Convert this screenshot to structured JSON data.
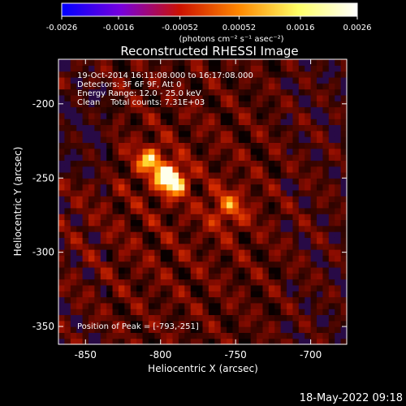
{
  "chart_data": {
    "type": "heatmap",
    "title": "Reconstructed RHESSI Image",
    "xlabel": "Heliocentric X (arcsec)",
    "ylabel": "Heliocentric Y (arcsec)",
    "xlim": [
      -868,
      -676
    ],
    "ylim": [
      -362,
      -170
    ],
    "x_ticks": [
      -850,
      -800,
      -750,
      -700
    ],
    "y_ticks": [
      -350,
      -300,
      -250,
      -200
    ],
    "x_tick_labels": [
      "-850",
      "-800",
      "-750",
      "-700"
    ],
    "y_tick_labels": [
      "-350",
      "-300",
      "-250",
      "-200"
    ],
    "colorbar": {
      "range": [
        -0.0026,
        0.0026
      ],
      "ticks": [
        -0.0026,
        -0.0016,
        -0.00052,
        0.00052,
        0.0016,
        0.0026
      ],
      "tick_labels": [
        "-0.0026",
        "-0.0016",
        "-0.00052",
        "0.00052",
        "0.0016",
        "0.0026"
      ],
      "unit_label": "(photons cm⁻² s⁻¹ asec⁻²)",
      "colors": [
        "#0000ff",
        "#7700dd",
        "#cc1100",
        "#ff8800",
        "#ffff66",
        "#ffffff"
      ]
    },
    "sources": [
      {
        "x": -793,
        "y": -251,
        "peak": 0.0026,
        "sigma": 7
      },
      {
        "x": -807,
        "y": -238,
        "peak": 0.0016,
        "sigma": 7
      },
      {
        "x": -755,
        "y": -270,
        "peak": 0.0011,
        "sigma": 9
      }
    ],
    "peak_position": [
      -793,
      -251
    ]
  },
  "info": {
    "line1": "19-Oct-2014 16:11:08.000 to 16:17:08.000",
    "line2": "Detectors: 3F 6F 9F, Att 0",
    "line3": "Energy Range: 12.0 - 25.0 keV",
    "line4": "Clean    Total counts: 7.31E+03",
    "peak_text": "Position of Peak = [-793,-251]"
  },
  "footer": "18-May-2022 09:18"
}
